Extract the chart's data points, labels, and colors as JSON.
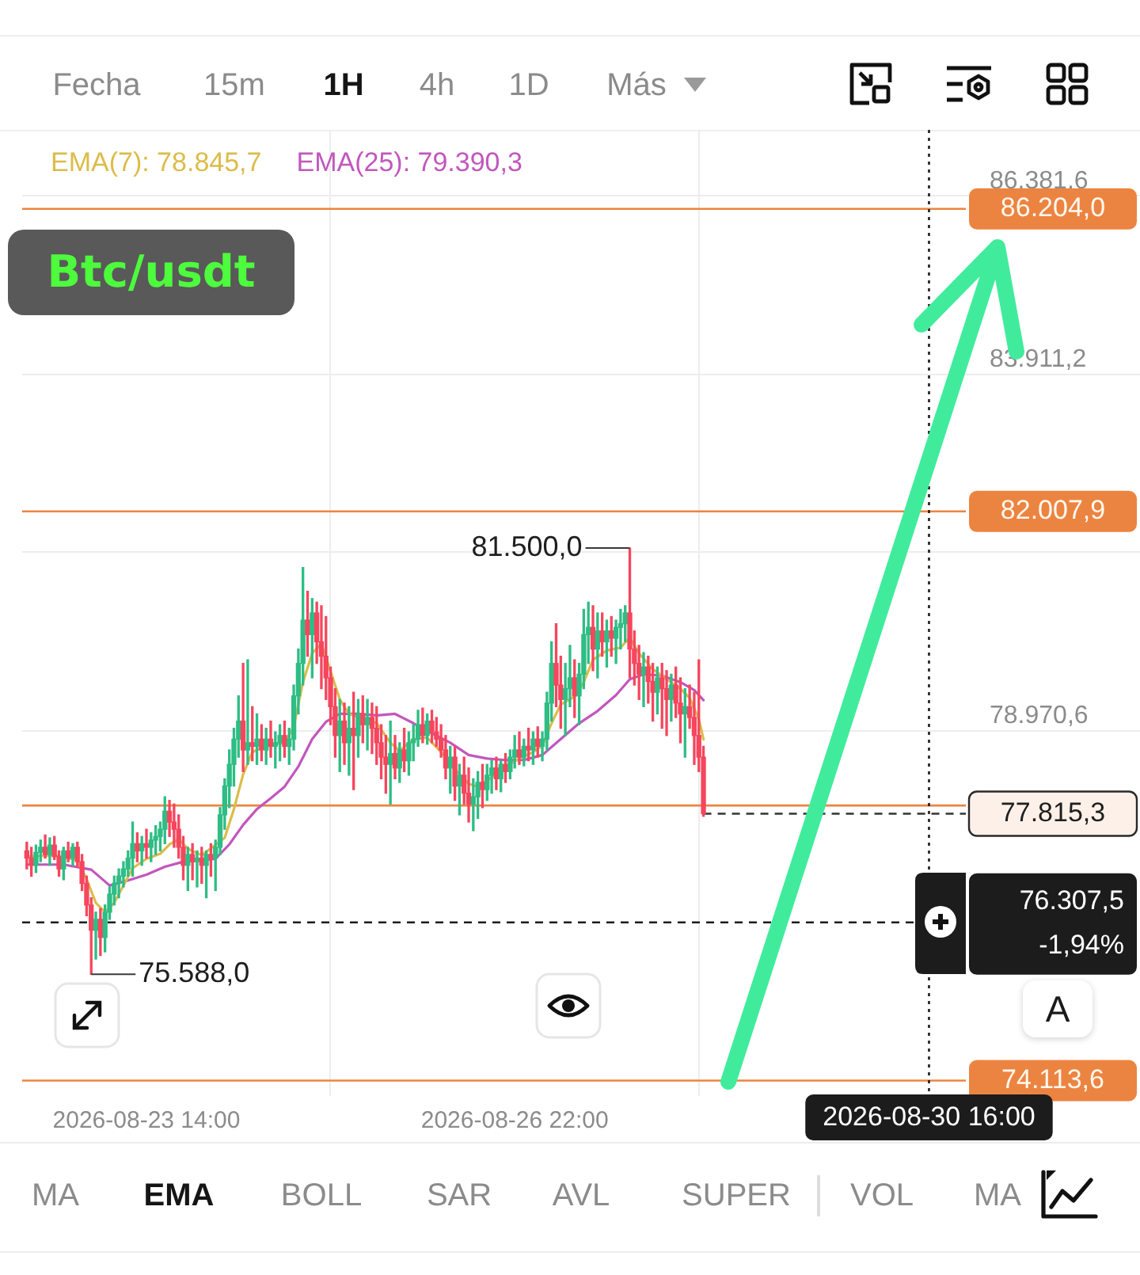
{
  "chart_data": {
    "type": "candlestick",
    "title": "Btc/usdt",
    "x": [
      "2026-08-22T12:00",
      "2026-08-22T13:00",
      "2026-08-22T14:00",
      "2026-08-22T15:00",
      "2026-08-22T16:00",
      "2026-08-22T17:00",
      "2026-08-22T18:00",
      "2026-08-22T19:00",
      "2026-08-22T20:00",
      "2026-08-22T21:00",
      "2026-08-22T22:00",
      "2026-08-22T23:00",
      "2026-08-23T00:00",
      "2026-08-23T01:00",
      "2026-08-23T02:00",
      "2026-08-23T03:00",
      "2026-08-23T04:00",
      "2026-08-23T05:00",
      "2026-08-23T06:00",
      "2026-08-23T07:00",
      "2026-08-23T08:00",
      "2026-08-23T09:00",
      "2026-08-23T10:00",
      "2026-08-23T11:00",
      "2026-08-23T12:00",
      "2026-08-23T13:00",
      "2026-08-23T14:00",
      "2026-08-23T15:00",
      "2026-08-23T16:00",
      "2026-08-23T17:00",
      "2026-08-23T18:00",
      "2026-08-23T19:00",
      "2026-08-23T20:00",
      "2026-08-23T21:00",
      "2026-08-23T22:00",
      "2026-08-23T23:00",
      "2026-08-24T00:00",
      "2026-08-24T01:00",
      "2026-08-24T02:00",
      "2026-08-24T03:00",
      "2026-08-24T04:00",
      "2026-08-24T05:00",
      "2026-08-24T06:00",
      "2026-08-24T07:00",
      "2026-08-24T08:00",
      "2026-08-24T09:00",
      "2026-08-24T10:00",
      "2026-08-24T11:00",
      "2026-08-24T12:00",
      "2026-08-24T13:00",
      "2026-08-24T14:00",
      "2026-08-24T15:00",
      "2026-08-24T16:00",
      "2026-08-24T17:00",
      "2026-08-24T18:00",
      "2026-08-24T19:00",
      "2026-08-24T20:00",
      "2026-08-24T21:00",
      "2026-08-24T22:00",
      "2026-08-24T23:00",
      "2026-08-25T00:00",
      "2026-08-25T01:00",
      "2026-08-25T02:00",
      "2026-08-25T03:00",
      "2026-08-25T04:00",
      "2026-08-25T05:00",
      "2026-08-25T06:00",
      "2026-08-25T07:00",
      "2026-08-25T08:00",
      "2026-08-25T09:00",
      "2026-08-25T10:00",
      "2026-08-25T11:00",
      "2026-08-25T12:00",
      "2026-08-25T13:00",
      "2026-08-25T14:00",
      "2026-08-25T15:00",
      "2026-08-25T16:00",
      "2026-08-25T17:00",
      "2026-08-25T18:00",
      "2026-08-25T19:00",
      "2026-08-25T20:00",
      "2026-08-25T21:00",
      "2026-08-25T22:00",
      "2026-08-25T23:00",
      "2026-08-26T00:00",
      "2026-08-26T01:00",
      "2026-08-26T02:00",
      "2026-08-26T03:00",
      "2026-08-26T04:00",
      "2026-08-26T05:00",
      "2026-08-26T06:00",
      "2026-08-26T07:00",
      "2026-08-26T08:00",
      "2026-08-26T09:00",
      "2026-08-26T10:00",
      "2026-08-26T11:00",
      "2026-08-26T12:00",
      "2026-08-26T13:00",
      "2026-08-26T14:00",
      "2026-08-26T15:00",
      "2026-08-26T16:00",
      "2026-08-26T17:00",
      "2026-08-26T18:00",
      "2026-08-26T19:00",
      "2026-08-26T20:00",
      "2026-08-26T21:00",
      "2026-08-26T22:00",
      "2026-08-26T23:00",
      "2026-08-27T00:00",
      "2026-08-27T01:00",
      "2026-08-27T02:00",
      "2026-08-27T03:00",
      "2026-08-27T04:00",
      "2026-08-27T05:00",
      "2026-08-27T06:00",
      "2026-08-27T07:00",
      "2026-08-27T08:00",
      "2026-08-27T09:00",
      "2026-08-27T10:00",
      "2026-08-27T11:00",
      "2026-08-27T12:00",
      "2026-08-27T13:00",
      "2026-08-27T14:00",
      "2026-08-27T15:00",
      "2026-08-27T16:00",
      "2026-08-27T17:00",
      "2026-08-27T18:00",
      "2026-08-27T19:00",
      "2026-08-27T20:00",
      "2026-08-27T21:00",
      "2026-08-27T22:00",
      "2026-08-27T23:00",
      "2026-08-28T00:00",
      "2026-08-28T01:00",
      "2026-08-28T02:00",
      "2026-08-28T03:00",
      "2026-08-28T04:00",
      "2026-08-28T05:00",
      "2026-08-28T06:00",
      "2026-08-28T07:00",
      "2026-08-28T08:00",
      "2026-08-28T09:00",
      "2026-08-28T10:00",
      "2026-08-28T11:00",
      "2026-08-28T12:00",
      "2026-08-28T13:00",
      "2026-08-28T14:00",
      "2026-08-28T15:00"
    ],
    "ohlc": [
      [
        77300,
        77420,
        77050,
        77200
      ],
      [
        77200,
        77350,
        76950,
        77100
      ],
      [
        77100,
        77380,
        77000,
        77280
      ],
      [
        77280,
        77450,
        77150,
        77350
      ],
      [
        77350,
        77520,
        77200,
        77250
      ],
      [
        77250,
        77480,
        77100,
        77380
      ],
      [
        77380,
        77500,
        77180,
        77220
      ],
      [
        77220,
        77300,
        76950,
        77050
      ],
      [
        77050,
        77350,
        76900,
        77300
      ],
      [
        77300,
        77420,
        77150,
        77200
      ],
      [
        77200,
        77400,
        77100,
        77350
      ],
      [
        77350,
        77420,
        77080,
        77150
      ],
      [
        77150,
        77250,
        76750,
        76850
      ],
      [
        76850,
        76950,
        76400,
        76550
      ],
      [
        76550,
        76650,
        75588,
        76200
      ],
      [
        76200,
        76450,
        75800,
        76350
      ],
      [
        76350,
        76500,
        75850,
        76100
      ],
      [
        76100,
        76550,
        75900,
        76450
      ],
      [
        76450,
        76800,
        76350,
        76700
      ],
      [
        76700,
        76950,
        76550,
        76850
      ],
      [
        76850,
        77050,
        76650,
        76950
      ],
      [
        76950,
        77150,
        76800,
        77050
      ],
      [
        77050,
        77300,
        76950,
        77200
      ],
      [
        77200,
        77700,
        76950,
        77400
      ],
      [
        77400,
        77550,
        77150,
        77300
      ],
      [
        77300,
        77500,
        77100,
        77400
      ],
      [
        77400,
        77600,
        77200,
        77350
      ],
      [
        77350,
        77550,
        77150,
        77450
      ],
      [
        77450,
        77650,
        77250,
        77500
      ],
      [
        77500,
        77700,
        77300,
        77600
      ],
      [
        77600,
        78050,
        77400,
        77850
      ],
      [
        77850,
        78000,
        77500,
        77700
      ],
      [
        77700,
        77950,
        77350,
        77600
      ],
      [
        77600,
        77800,
        77200,
        77350
      ],
      [
        77350,
        77500,
        76900,
        77100
      ],
      [
        77100,
        77350,
        76750,
        77250
      ],
      [
        77250,
        77400,
        76900,
        77150
      ],
      [
        77150,
        77300,
        76800,
        77200
      ],
      [
        77200,
        77350,
        76850,
        77100
      ],
      [
        77100,
        77300,
        76650,
        77250
      ],
      [
        77250,
        77400,
        76950,
        77200
      ],
      [
        77200,
        77450,
        76750,
        77350
      ],
      [
        77350,
        77900,
        77250,
        77800
      ],
      [
        77800,
        78300,
        77600,
        78200
      ],
      [
        78200,
        78700,
        77900,
        78500
      ],
      [
        78500,
        79000,
        78200,
        78850
      ],
      [
        78850,
        79450,
        78600,
        79100
      ],
      [
        79100,
        79900,
        78400,
        78700
      ],
      [
        78700,
        79950,
        78500,
        78800
      ],
      [
        78800,
        79300,
        78550,
        78750
      ],
      [
        78750,
        79200,
        78500,
        78850
      ],
      [
        78850,
        79050,
        78550,
        78700
      ],
      [
        78700,
        79000,
        78500,
        78850
      ],
      [
        78850,
        79100,
        78600,
        78750
      ],
      [
        78750,
        78950,
        78450,
        78800
      ],
      [
        78800,
        79050,
        78550,
        78900
      ],
      [
        78900,
        79100,
        78600,
        78750
      ],
      [
        78750,
        79000,
        78500,
        78850
      ],
      [
        78850,
        79600,
        78700,
        79450
      ],
      [
        79450,
        80100,
        79200,
        79900
      ],
      [
        79900,
        81230,
        79600,
        80500
      ],
      [
        80500,
        80900,
        80000,
        80300
      ],
      [
        80300,
        80800,
        79700,
        80600
      ],
      [
        80600,
        80750,
        79900,
        80200
      ],
      [
        80200,
        80700,
        79550,
        80000
      ],
      [
        80000,
        80550,
        79400,
        79700
      ],
      [
        79700,
        79850,
        79050,
        79300
      ],
      [
        79300,
        79550,
        78600,
        78900
      ],
      [
        78900,
        79400,
        78400,
        79100
      ],
      [
        79100,
        79350,
        78500,
        78800
      ],
      [
        78800,
        79300,
        78350,
        79000
      ],
      [
        79000,
        79500,
        78150,
        78900
      ],
      [
        78900,
        79400,
        78600,
        79200
      ],
      [
        79200,
        79450,
        78800,
        79050
      ],
      [
        79050,
        79400,
        78700,
        79150
      ],
      [
        79150,
        79350,
        78650,
        79000
      ],
      [
        79000,
        79300,
        78500,
        78800
      ],
      [
        78800,
        79050,
        78300,
        78600
      ],
      [
        78600,
        78900,
        78100,
        78500
      ],
      [
        78500,
        79100,
        77950,
        78650
      ],
      [
        78650,
        78900,
        78300,
        78450
      ],
      [
        78450,
        78800,
        78250,
        78700
      ],
      [
        78700,
        79000,
        78400,
        78550
      ],
      [
        78550,
        78950,
        78350,
        78800
      ],
      [
        78800,
        79050,
        78550,
        78850
      ],
      [
        78850,
        79250,
        78750,
        79050
      ],
      [
        79050,
        79280,
        78800,
        78900
      ],
      [
        78900,
        79200,
        78780,
        79100
      ],
      [
        79100,
        79250,
        78800,
        78950
      ],
      [
        78950,
        79150,
        78750,
        78850
      ],
      [
        78850,
        79050,
        78600,
        78700
      ],
      [
        78700,
        78900,
        78300,
        78450
      ],
      [
        78450,
        78750,
        78100,
        78600
      ],
      [
        78600,
        78750,
        78000,
        78200
      ],
      [
        78200,
        78500,
        77800,
        78350
      ],
      [
        78350,
        78600,
        77950,
        78100
      ],
      [
        78100,
        78450,
        77700,
        77950
      ],
      [
        77950,
        78300,
        77580,
        78050
      ],
      [
        78050,
        78400,
        77750,
        78250
      ],
      [
        78250,
        78500,
        77900,
        78150
      ],
      [
        78150,
        78500,
        78000,
        78350
      ],
      [
        78350,
        78550,
        78100,
        78450
      ],
      [
        78450,
        78600,
        78150,
        78300
      ],
      [
        78300,
        78550,
        78120,
        78500
      ],
      [
        78500,
        78650,
        78250,
        78400
      ],
      [
        78400,
        78700,
        78300,
        78600
      ],
      [
        78600,
        78900,
        78450,
        78700
      ],
      [
        78700,
        78950,
        78500,
        78600
      ],
      [
        78600,
        78850,
        78480,
        78750
      ],
      [
        78750,
        79000,
        78550,
        78700
      ],
      [
        78700,
        78950,
        78500,
        78850
      ],
      [
        78850,
        79020,
        78600,
        78750
      ],
      [
        78750,
        78950,
        78550,
        78850
      ],
      [
        78850,
        79500,
        78700,
        79350
      ],
      [
        79350,
        80200,
        79100,
        79900
      ],
      [
        79900,
        80450,
        79300,
        79600
      ],
      [
        79600,
        80000,
        79000,
        79400
      ],
      [
        79400,
        79900,
        78900,
        79550
      ],
      [
        79550,
        80150,
        79300,
        79700
      ],
      [
        79700,
        79950,
        79150,
        79450
      ],
      [
        79450,
        79900,
        79050,
        79750
      ],
      [
        79750,
        80650,
        79550,
        80300
      ],
      [
        80300,
        80750,
        79900,
        80400
      ],
      [
        80400,
        80700,
        79800,
        80100
      ],
      [
        80100,
        80600,
        79700,
        80350
      ],
      [
        80350,
        80600,
        80000,
        80200
      ],
      [
        80200,
        80500,
        79850,
        80350
      ],
      [
        80350,
        80550,
        80000,
        80250
      ],
      [
        80250,
        80500,
        79900,
        80400
      ],
      [
        80400,
        80650,
        80100,
        80450
      ],
      [
        80450,
        80700,
        80200,
        80600
      ],
      [
        80600,
        81500,
        79700,
        80100
      ],
      [
        80100,
        80350,
        79600,
        79900
      ],
      [
        79900,
        80150,
        79400,
        79750
      ],
      [
        79750,
        80050,
        79300,
        79850
      ],
      [
        79850,
        80000,
        79350,
        79650
      ],
      [
        79650,
        79900,
        79100,
        79500
      ],
      [
        79500,
        79850,
        79200,
        79700
      ],
      [
        79700,
        79900,
        79000,
        79550
      ],
      [
        79550,
        79800,
        78900,
        79400
      ],
      [
        79400,
        79750,
        79100,
        79600
      ],
      [
        79600,
        79850,
        79150,
        79350
      ],
      [
        79350,
        79700,
        78800,
        79200
      ],
      [
        79200,
        79550,
        78600,
        79300
      ],
      [
        79300,
        79600,
        79000,
        79150
      ],
      [
        79150,
        79500,
        78500,
        78900
      ],
      [
        78900,
        79950,
        78400,
        78600
      ],
      [
        78600,
        78750,
        77780,
        77815.3
      ]
    ],
    "colors": [
      "#f6465d",
      "#f6465d",
      "#2ebd85",
      "#2ebd85",
      "#f6465d",
      "#2ebd85",
      "#f6465d",
      "#f6465d",
      "#2ebd85",
      "#f6465d",
      "#2ebd85",
      "#f6465d",
      "#f6465d",
      "#f6465d",
      "#f6465d",
      "#2ebd85",
      "#f6465d",
      "#2ebd85",
      "#2ebd85",
      "#2ebd85",
      "#2ebd85",
      "#2ebd85",
      "#2ebd85",
      "#2ebd85",
      "#f6465d",
      "#2ebd85",
      "#f6465d",
      "#2ebd85",
      "#2ebd85",
      "#2ebd85",
      "#2ebd85",
      "#f6465d",
      "#f6465d",
      "#f6465d",
      "#f6465d",
      "#2ebd85",
      "#f6465d",
      "#2ebd85",
      "#f6465d",
      "#2ebd85",
      "#f6465d",
      "#2ebd85",
      "#2ebd85",
      "#2ebd85",
      "#2ebd85",
      "#2ebd85",
      "#2ebd85",
      "#f6465d",
      "#2ebd85",
      "#f6465d",
      "#2ebd85",
      "#f6465d",
      "#2ebd85",
      "#f6465d",
      "#2ebd85",
      "#2ebd85",
      "#f6465d",
      "#2ebd85",
      "#2ebd85",
      "#2ebd85",
      "#2ebd85",
      "#f6465d",
      "#2ebd85",
      "#f6465d",
      "#f6465d",
      "#f6465d",
      "#f6465d",
      "#f6465d",
      "#2ebd85",
      "#f6465d",
      "#2ebd85",
      "#f6465d",
      "#2ebd85",
      "#f6465d",
      "#2ebd85",
      "#f6465d",
      "#f6465d",
      "#f6465d",
      "#f6465d",
      "#2ebd85",
      "#f6465d",
      "#2ebd85",
      "#f6465d",
      "#2ebd85",
      "#2ebd85",
      "#2ebd85",
      "#f6465d",
      "#2ebd85",
      "#f6465d",
      "#f6465d",
      "#f6465d",
      "#f6465d",
      "#2ebd85",
      "#f6465d",
      "#2ebd85",
      "#f6465d",
      "#f6465d",
      "#2ebd85",
      "#2ebd85",
      "#f6465d",
      "#2ebd85",
      "#2ebd85",
      "#f6465d",
      "#2ebd85",
      "#f6465d",
      "#2ebd85",
      "#2ebd85",
      "#f6465d",
      "#2ebd85",
      "#f6465d",
      "#2ebd85",
      "#f6465d",
      "#2ebd85",
      "#2ebd85",
      "#2ebd85",
      "#f6465d",
      "#f6465d",
      "#2ebd85",
      "#2ebd85",
      "#f6465d",
      "#2ebd85",
      "#2ebd85",
      "#2ebd85",
      "#f6465d",
      "#2ebd85",
      "#f6465d",
      "#2ebd85",
      "#f6465d",
      "#2ebd85",
      "#2ebd85",
      "#2ebd85",
      "#f6465d",
      "#f6465d",
      "#f6465d",
      "#2ebd85",
      "#f6465d",
      "#f6465d",
      "#2ebd85",
      "#f6465d",
      "#f6465d",
      "#2ebd85",
      "#f6465d",
      "#f6465d",
      "#2ebd85",
      "#f6465d",
      "#f6465d",
      "#f6465d",
      "#f6465d"
    ],
    "series": [
      {
        "type": "line",
        "name": "EMA(7): 78.845,7",
        "color": "#dcbc4a",
        "x": [
          "2026-08-22T12:00",
          "2026-08-22T18:00",
          "2026-08-22T23:00",
          "2026-08-23T01:00",
          "2026-08-23T03:00",
          "2026-08-23T05:00",
          "2026-08-23T07:00",
          "2026-08-23T09:00",
          "2026-08-23T11:00",
          "2026-08-23T14:00",
          "2026-08-23T17:00",
          "2026-08-23T19:00",
          "2026-08-23T21:00",
          "2026-08-23T23:00",
          "2026-08-24T02:00",
          "2026-08-24T07:00",
          "2026-08-24T09:00",
          "2026-08-24T11:00",
          "2026-08-24T13:00",
          "2026-08-24T16:00",
          "2026-08-24T20:00",
          "2026-08-24T22:00",
          "2026-08-25T00:00",
          "2026-08-25T02:00",
          "2026-08-25T04:00",
          "2026-08-25T06:00",
          "2026-08-25T08:00",
          "2026-08-25T10:00",
          "2026-08-25T13:00",
          "2026-08-25T16:00",
          "2026-08-25T19:00",
          "2026-08-25T21:00",
          "2026-08-26T00:00",
          "2026-08-26T03:00",
          "2026-08-26T06:00",
          "2026-08-26T09:00",
          "2026-08-26T12:00",
          "2026-08-26T14:00",
          "2026-08-26T17:00",
          "2026-08-26T20:00",
          "2026-08-26T23:00",
          "2026-08-27T02:00",
          "2026-08-27T04:00",
          "2026-08-27T06:00",
          "2026-08-27T08:00",
          "2026-08-27T11:00",
          "2026-08-27T13:00",
          "2026-08-27T15:00",
          "2026-08-27T18:00",
          "2026-08-27T21:00",
          "2026-08-27T23:00",
          "2026-08-28T01:00",
          "2026-08-28T04:00",
          "2026-08-28T07:00",
          "2026-08-28T10:00",
          "2026-08-28T12:00",
          "2026-08-28T14:00",
          "2026-08-28T15:00"
        ],
        "values": [
          77220,
          77240,
          77170,
          76910,
          76580,
          76450,
          76580,
          76820,
          77060,
          77190,
          77260,
          77390,
          77460,
          77330,
          77240,
          77480,
          77880,
          78360,
          78670,
          78760,
          78800,
          79020,
          79640,
          80040,
          80170,
          79790,
          79400,
          79200,
          79130,
          79070,
          78800,
          78690,
          78850,
          78870,
          78670,
          78430,
          78230,
          78190,
          78320,
          78470,
          78580,
          78670,
          78760,
          79070,
          79330,
          79440,
          79640,
          79950,
          80080,
          80120,
          80260,
          80040,
          79820,
          79680,
          79550,
          79420,
          79130,
          78845.7
        ]
      },
      {
        "type": "line",
        "name": "EMA(25): 79.390,3",
        "color": "#c257bd",
        "x": [
          "2026-08-22T12:00",
          "2026-08-22T20:00",
          "2026-08-23T02:00",
          "2026-08-23T06:00",
          "2026-08-23T10:00",
          "2026-08-23T14:00",
          "2026-08-23T18:00",
          "2026-08-23T22:00",
          "2026-08-24T02:00",
          "2026-08-24T05:00",
          "2026-08-24T08:00",
          "2026-08-24T11:00",
          "2026-08-24T14:00",
          "2026-08-24T17:00",
          "2026-08-24T20:00",
          "2026-08-24T23:00",
          "2026-08-25T02:00",
          "2026-08-25T05:00",
          "2026-08-25T08:00",
          "2026-08-25T12:00",
          "2026-08-25T16:00",
          "2026-08-25T20:00",
          "2026-08-26T00:00",
          "2026-08-26T04:00",
          "2026-08-26T08:00",
          "2026-08-26T12:00",
          "2026-08-26T16:00",
          "2026-08-26T20:00",
          "2026-08-27T00:00",
          "2026-08-27T04:00",
          "2026-08-27T08:00",
          "2026-08-27T12:00",
          "2026-08-27T16:00",
          "2026-08-27T20:00",
          "2026-08-27T23:00",
          "2026-08-28T02:00",
          "2026-08-28T06:00",
          "2026-08-28T10:00",
          "2026-08-28T13:00",
          "2026-08-28T15:00"
        ],
        "values": [
          77110,
          77110,
          77040,
          76820,
          76890,
          76970,
          77080,
          77150,
          77170,
          77190,
          77390,
          77660,
          77880,
          78030,
          78190,
          78470,
          78850,
          79090,
          79200,
          79200,
          79180,
          79200,
          79070,
          78930,
          78800,
          78630,
          78580,
          78560,
          78560,
          78630,
          78850,
          79070,
          79240,
          79460,
          79680,
          79750,
          79730,
          79640,
          79530,
          79390.3
        ]
      }
    ],
    "xlim": [
      "2026-08-22T11:00",
      "2026-08-31T00:00"
    ],
    "xticks": [
      {
        "value": "2026-08-23T14:00",
        "label": "2026-08-23 14:00"
      },
      {
        "value": "2026-08-26T22:00",
        "label": "2026-08-26 22:00"
      }
    ],
    "ylim": [
      73900,
      87300
    ],
    "yticks": [
      {
        "value": 78970.6,
        "label": "78.970,6"
      },
      {
        "value": 81440.8,
        "label": null
      },
      {
        "value": 83911.2,
        "label": "83.911,2"
      },
      {
        "value": 86381.6,
        "label": "86.381,6"
      }
    ],
    "ref_lines": [
      {
        "axis": "y",
        "value": 86204.0,
        "label": "86.204,0",
        "color": "#ec8441"
      },
      {
        "axis": "y",
        "value": 82007.9,
        "label": "82.007,9",
        "color": "#ec8441"
      },
      {
        "axis": "y",
        "value": 77930,
        "color": "#ec8441"
      },
      {
        "axis": "y",
        "value": 77815.3,
        "label": "77.815,3",
        "color": "#333333",
        "line_style": "dashed"
      },
      {
        "axis": "y",
        "value": 76307.5,
        "label": "76.307,5",
        "color": "#1c1c1c",
        "line_style": "dashed"
      },
      {
        "axis": "y",
        "value": 74113.6,
        "label": "74.113,6",
        "color": "#ec8441"
      },
      {
        "axis": "x",
        "value": "2026-08-30T16:00",
        "label": "2026-08-30 16:00",
        "color": "#1c1c1c",
        "line_style": "dotted"
      }
    ],
    "annotations": [
      "Fecha",
      "15m",
      "1H",
      "4h",
      "1D",
      "Más",
      "MA",
      "EMA",
      "BOLL",
      "SAR",
      "AVL",
      "SUPER",
      "VOL",
      "MA",
      "A",
      "-1,94%",
      {
        "text": "81.500,0",
        "x": "2026-08-27T23:00",
        "y": 81500
      },
      {
        "text": "75.588,0",
        "x": "2026-08-23T02:00",
        "y": 75588
      }
    ],
    "grid": true,
    "marker": "none"
  }
}
